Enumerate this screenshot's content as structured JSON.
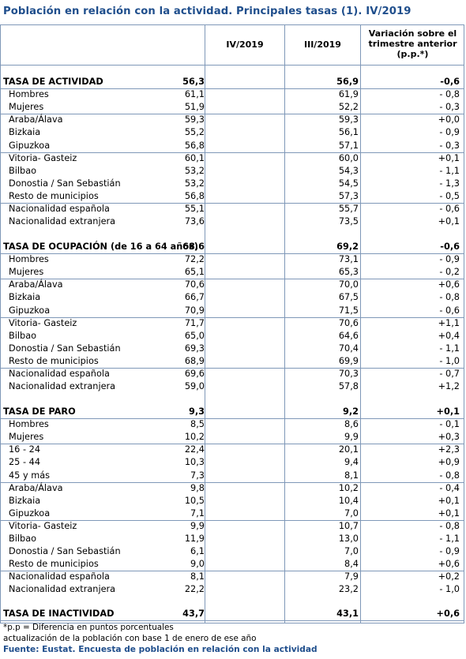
{
  "title": "Población en relación con la actividad. Principales tasas (1). IV/2019",
  "columns": [
    "IV/2019",
    "III/2019",
    "Variación sobre el trimestre anterior (p.p.*)"
  ],
  "column_header_lines": {
    "col1": "IV/2019",
    "col2": "III/2019",
    "col3_line1": "Variación sobre el",
    "col3_line2": "trimestre anterior",
    "col3_line3": "(p.p.*)"
  },
  "sections": [
    {
      "label": "TASA DE ACTIVIDAD",
      "iv": "56,3",
      "iii": "56,9",
      "var": "-0,6",
      "rows": [
        {
          "label": "Hombres",
          "iv": "61,1",
          "iii": "61,9",
          "var": "- 0,8"
        },
        {
          "label": "Mujeres",
          "iv": "51,9",
          "iii": "52,2",
          "var": "- 0,3"
        },
        {
          "label": "Araba/Álava",
          "iv": "59,3",
          "iii": "59,3",
          "var": "+0,0"
        },
        {
          "label": "Bizkaia",
          "iv": "55,2",
          "iii": "56,1",
          "var": "- 0,9"
        },
        {
          "label": "Gipuzkoa",
          "iv": "56,8",
          "iii": "57,1",
          "var": "- 0,3"
        },
        {
          "label": "Vitoria- Gasteiz",
          "iv": "60,1",
          "iii": "60,0",
          "var": "+0,1"
        },
        {
          "label": "Bilbao",
          "iv": "53,2",
          "iii": "54,3",
          "var": "- 1,1"
        },
        {
          "label": "Donostia / San Sebastián",
          "iv": "53,2",
          "iii": "54,5",
          "var": "- 1,3"
        },
        {
          "label": "Resto de municipios",
          "iv": "56,8",
          "iii": "57,3",
          "var": "- 0,5"
        },
        {
          "label": "Nacionalidad española",
          "iv": "55,1",
          "iii": "55,7",
          "var": "- 0,6"
        },
        {
          "label": "Nacionalidad extranjera",
          "iv": "73,6",
          "iii": "73,5",
          "var": "+0,1"
        }
      ]
    },
    {
      "label": "TASA DE OCUPACIÓN (de 16 a 64 años)",
      "iv": "68,6",
      "iii": "69,2",
      "var": "-0,6",
      "rows": [
        {
          "label": "Hombres",
          "iv": "72,2",
          "iii": "73,1",
          "var": "- 0,9"
        },
        {
          "label": "Mujeres",
          "iv": "65,1",
          "iii": "65,3",
          "var": "- 0,2"
        },
        {
          "label": "Araba/Álava",
          "iv": "70,6",
          "iii": "70,0",
          "var": "+0,6"
        },
        {
          "label": "Bizkaia",
          "iv": "66,7",
          "iii": "67,5",
          "var": "- 0,8"
        },
        {
          "label": "Gipuzkoa",
          "iv": "70,9",
          "iii": "71,5",
          "var": "- 0,6"
        },
        {
          "label": "Vitoria- Gasteiz",
          "iv": "71,7",
          "iii": "70,6",
          "var": "+1,1"
        },
        {
          "label": "Bilbao",
          "iv": "65,0",
          "iii": "64,6",
          "var": "+0,4"
        },
        {
          "label": "Donostia / San Sebastián",
          "iv": "69,3",
          "iii": "70,4",
          "var": "- 1,1"
        },
        {
          "label": "Resto de municipios",
          "iv": "68,9",
          "iii": "69,9",
          "var": "- 1,0"
        },
        {
          "label": "Nacionalidad española",
          "iv": "69,6",
          "iii": "70,3",
          "var": "- 0,7"
        },
        {
          "label": "Nacionalidad extranjera",
          "iv": "59,0",
          "iii": "57,8",
          "var": "+1,2"
        }
      ]
    },
    {
      "label": "TASA DE PARO",
      "iv": "9,3",
      "iii": "9,2",
      "var": "+0,1",
      "rows": [
        {
          "label": "Hombres",
          "iv": "8,5",
          "iii": "8,6",
          "var": "- 0,1"
        },
        {
          "label": "Mujeres",
          "iv": "10,2",
          "iii": "9,9",
          "var": "+0,3"
        },
        {
          "label": "16 - 24",
          "iv": "22,4",
          "iii": "20,1",
          "var": "+2,3"
        },
        {
          "label": "25 - 44",
          "iv": "10,3",
          "iii": "9,4",
          "var": "+0,9"
        },
        {
          "label": "45  y más",
          "iv": "7,3",
          "iii": "8,1",
          "var": "- 0,8"
        },
        {
          "label": "Araba/Álava",
          "iv": "9,8",
          "iii": "10,2",
          "var": "- 0,4"
        },
        {
          "label": "Bizkaia",
          "iv": "10,5",
          "iii": "10,4",
          "var": "+0,1"
        },
        {
          "label": "Gipuzkoa",
          "iv": "7,1",
          "iii": "7,0",
          "var": "+0,1"
        },
        {
          "label": "Vitoria- Gasteiz",
          "iv": "9,9",
          "iii": "10,7",
          "var": "- 0,8"
        },
        {
          "label": "Bilbao",
          "iv": "11,9",
          "iii": "13,0",
          "var": "- 1,1"
        },
        {
          "label": "Donostia / San Sebastián",
          "iv": "6,1",
          "iii": "7,0",
          "var": "- 0,9"
        },
        {
          "label": "Resto de municipios",
          "iv": "9,0",
          "iii": "8,4",
          "var": "+0,6"
        },
        {
          "label": "Nacionalidad española",
          "iv": "8,1",
          "iii": "7,9",
          "var": "+0,2"
        },
        {
          "label": "Nacionalidad extranjera",
          "iv": "22,2",
          "iii": "23,2",
          "var": "- 1,0"
        }
      ]
    },
    {
      "label": "TASA DE INACTIVIDAD",
      "iv": "43,7",
      "iii": "43,1",
      "var": "+0,6",
      "rows": []
    }
  ],
  "notes": [
    "*p.p = Diferencia en puntos porcentuales",
    "actualización de la población con base 1 de enero de ese año"
  ],
  "source": "Fuente: Eustat. Encuesta de población en relación con la actividad"
}
